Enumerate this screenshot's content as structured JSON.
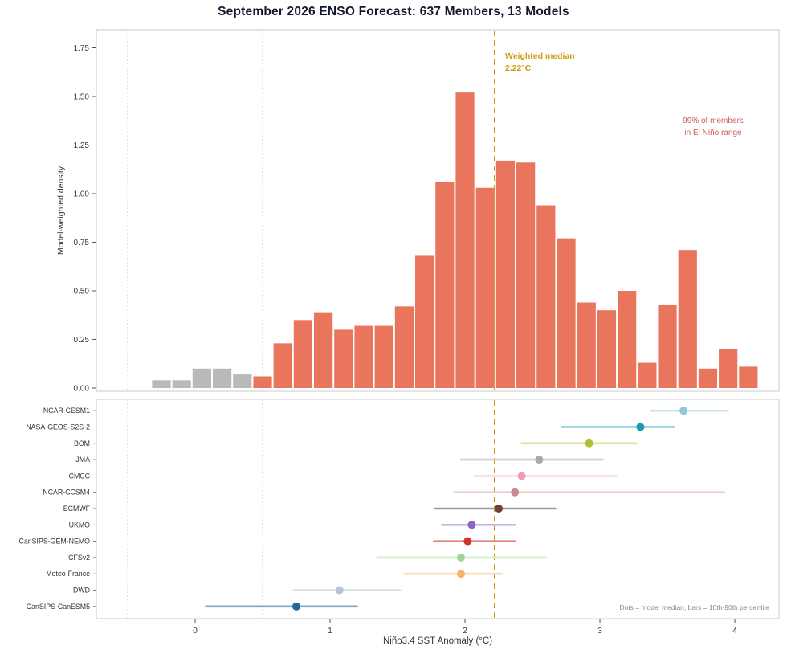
{
  "chart_data": {
    "type": "bar",
    "subtype": "histogram_with_model_dotplot",
    "title": "September 2026 ENSO Forecast: 637 Members, 13 Models",
    "xlabel": "Niño3.4 SST Anomaly (°C)",
    "ylabel_top": "Model-weighted density",
    "x_ticks": [
      "0",
      "1",
      "2",
      "3",
      "4"
    ],
    "x_tick_values": [
      0,
      1,
      2,
      3,
      4
    ],
    "y_ticks_top": [
      0.0,
      0.25,
      0.5,
      0.75,
      1.0,
      1.25,
      1.5,
      1.75
    ],
    "xlim": [
      -0.732,
      4.327
    ],
    "ylim_top": [
      0,
      1.84
    ],
    "bin_width": 0.15,
    "grid": false,
    "histogram": {
      "centers": [
        -0.25,
        -0.1,
        0.05,
        0.2,
        0.35,
        0.5,
        0.65,
        0.8,
        0.95,
        1.1,
        1.25,
        1.4,
        1.55,
        1.7,
        1.85,
        2.0,
        2.15,
        2.3,
        2.45,
        2.6,
        2.75,
        2.9,
        3.05,
        3.2,
        3.35,
        3.5,
        3.65,
        3.8,
        3.95,
        4.1
      ],
      "heights": [
        0.04,
        0.04,
        0.1,
        0.1,
        0.07,
        0.06,
        0.23,
        0.35,
        0.39,
        0.3,
        0.32,
        0.32,
        0.42,
        0.68,
        1.06,
        1.52,
        1.03,
        1.17,
        1.16,
        0.94,
        0.77,
        0.44,
        0.4,
        0.5,
        0.13,
        0.43,
        0.71,
        0.1,
        0.2,
        0.11
      ],
      "colors": [
        "gray",
        "gray",
        "gray",
        "gray",
        "gray",
        "salmon",
        "salmon",
        "salmon",
        "salmon",
        "salmon",
        "salmon",
        "salmon",
        "salmon",
        "salmon",
        "salmon",
        "salmon",
        "salmon",
        "salmon",
        "salmon",
        "salmon",
        "salmon",
        "salmon",
        "salmon",
        "salmon",
        "salmon",
        "salmon",
        "salmon",
        "salmon",
        "salmon",
        "salmon"
      ]
    },
    "thresholds": [
      -0.5,
      0.5
    ],
    "median_line": {
      "x": 2.22,
      "label_line1": "Weighted median",
      "label_line2": "2.22°C",
      "color": "#d19c12"
    },
    "annotation": {
      "line1": "99% of members",
      "line2": "in El Niño range",
      "color": "#cd5c5c"
    },
    "note": "Dots = model median, bars = 10th-90th percentile",
    "legend_position": "none",
    "models": [
      {
        "name": "NCAR-CESM1",
        "median": 3.62,
        "p10": 3.38,
        "p90": 3.95,
        "dot_color": "#92c5de",
        "bar_color": "#c9e4f0"
      },
      {
        "name": "NASA-GEOS-S2S-2",
        "median": 3.3,
        "p10": 2.72,
        "p90": 3.55,
        "dot_color": "#1a9bb0",
        "bar_color": "#8fd0da"
      },
      {
        "name": "BOM",
        "median": 2.92,
        "p10": 2.42,
        "p90": 3.27,
        "dot_color": "#b3bd32",
        "bar_color": "#dde39f"
      },
      {
        "name": "JMA",
        "median": 2.55,
        "p10": 1.97,
        "p90": 3.02,
        "dot_color": "#a9a9a9",
        "bar_color": "#d0d0d0"
      },
      {
        "name": "CMCC",
        "median": 2.42,
        "p10": 2.07,
        "p90": 3.12,
        "dot_color": "#f09cb8",
        "bar_color": "#f8d6e0"
      },
      {
        "name": "NCAR-CCSM4",
        "median": 2.37,
        "p10": 1.92,
        "p90": 3.92,
        "dot_color": "#c78a93",
        "bar_color": "#e9cdd2"
      },
      {
        "name": "ECMWF",
        "median": 2.25,
        "p10": 1.78,
        "p90": 2.67,
        "dot_color": "#6f4038",
        "bar_color": "#9c9c9c"
      },
      {
        "name": "UKMO",
        "median": 2.05,
        "p10": 1.83,
        "p90": 2.37,
        "dot_color": "#8a68c0",
        "bar_color": "#c6b8e4"
      },
      {
        "name": "CanSIPS-GEM-NEMO",
        "median": 2.02,
        "p10": 1.77,
        "p90": 2.37,
        "dot_color": "#d0312d",
        "bar_color": "#e2837f"
      },
      {
        "name": "CFSv2",
        "median": 1.97,
        "p10": 1.35,
        "p90": 2.6,
        "dot_color": "#a3d39c",
        "bar_color": "#d3ecce"
      },
      {
        "name": "Meteo-France",
        "median": 1.97,
        "p10": 1.55,
        "p90": 2.27,
        "dot_color": "#f5b26a",
        "bar_color": "#fbdcb4"
      },
      {
        "name": "DWD",
        "median": 1.07,
        "p10": 0.73,
        "p90": 1.52,
        "dot_color": "#b5c6d6",
        "bar_color": "#d7e1ea"
      },
      {
        "name": "CanSIPS-CanESM5",
        "median": 0.75,
        "p10": 0.08,
        "p90": 1.2,
        "dot_color": "#23689b",
        "bar_color": "#7fa8c6"
      }
    ],
    "colors": {
      "elnino_bar": "#e8755c",
      "neutral_bar": "#b9b9b9",
      "panel_border": "#c9c9c9",
      "threshold_line": "#bbbbbb",
      "tick_text": "#3a3a3a",
      "note_gray": "#8a8a8a"
    }
  }
}
